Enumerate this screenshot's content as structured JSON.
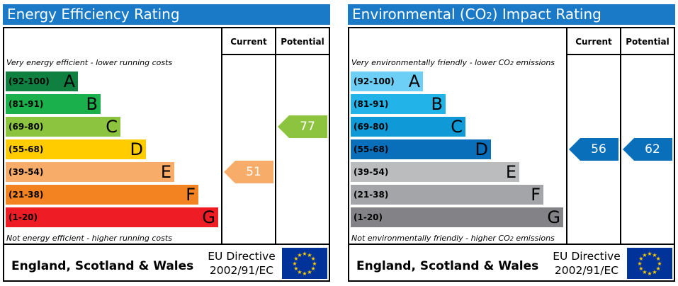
{
  "energy": {
    "title": "Energy Efficiency Rating",
    "current_label": "Current",
    "potential_label": "Potential",
    "top_caption": "Very energy efficient - lower running costs",
    "bottom_caption": "Not energy efficient - higher running costs",
    "region": "England, Scotland & Wales",
    "directive_line1": "EU Directive",
    "directive_line2": "2002/91/EC"
  },
  "environment": {
    "title_part1": "Environmental (CO",
    "title_sub": "2",
    "title_part2": ") Impact Rating",
    "current_label": "Current",
    "potential_label": "Potential",
    "top_caption_part1": "Very environmentally friendly - lower CO",
    "top_caption_sub": "2",
    "top_caption_part2": " emissions",
    "bottom_caption_part1": "Not environmentally friendly - higher CO",
    "bottom_caption_sub": "2",
    "bottom_caption_part2": " emissions",
    "region": "England, Scotland & Wales",
    "directive_line1": "EU Directive",
    "directive_line2": "2002/91/EC"
  },
  "chart_data": [
    {
      "type": "bar",
      "title": "Energy Efficiency Rating",
      "categories": [
        "(92-100)",
        "(81-91)",
        "(69-80)",
        "(55-68)",
        "(39-54)",
        "(21-38)",
        "(1-20)"
      ],
      "letters": [
        "A",
        "B",
        "C",
        "D",
        "E",
        "F",
        "G"
      ],
      "colors": [
        "#0f8040",
        "#1ab04b",
        "#8cc43f",
        "#ffcc00",
        "#f8ac6a",
        "#f38220",
        "#ee1c25"
      ],
      "current": 51,
      "current_band": "E",
      "current_color": "#f8ac6a",
      "potential": 77,
      "potential_band": "C",
      "potential_color": "#8cc43f"
    },
    {
      "type": "bar",
      "title": "Environmental (CO2) Impact Rating",
      "categories": [
        "(92-100)",
        "(81-91)",
        "(69-80)",
        "(55-68)",
        "(39-54)",
        "(21-38)",
        "(1-20)"
      ],
      "letters": [
        "A",
        "B",
        "C",
        "D",
        "E",
        "F",
        "G"
      ],
      "colors": [
        "#6ecff6",
        "#22b3e8",
        "#0f9ad7",
        "#0a6fbb",
        "#bbbcbe",
        "#a3a5a8",
        "#838387"
      ],
      "current": 56,
      "current_band": "D",
      "current_color": "#0a6fbb",
      "potential": 62,
      "potential_band": "D",
      "potential_color": "#0a6fbb"
    }
  ]
}
